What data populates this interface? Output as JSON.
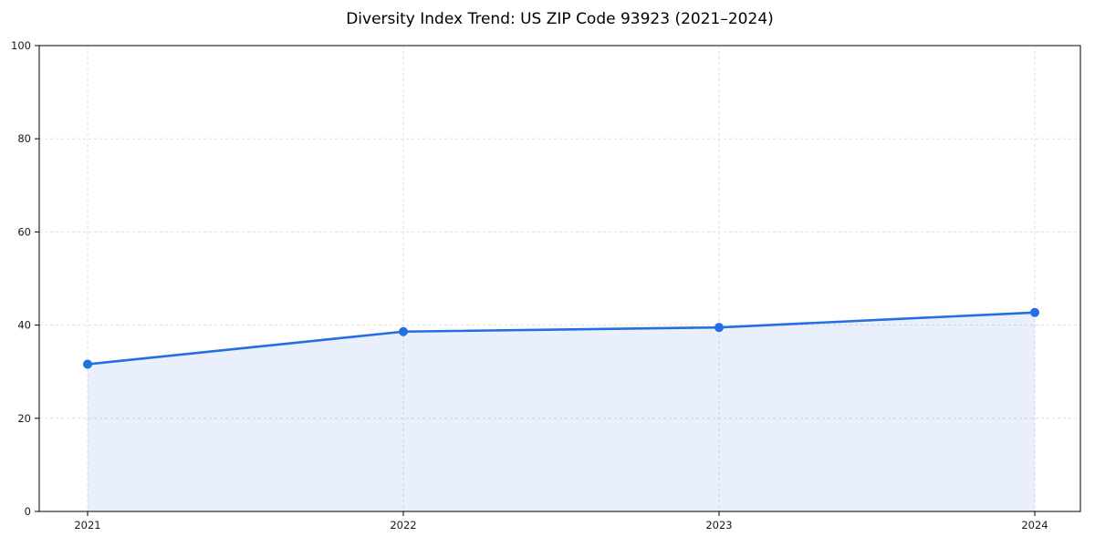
{
  "chart_data": {
    "type": "line",
    "title": "Diversity Index Trend: US ZIP Code 93923 (2021–2024)",
    "x": [
      2021,
      2022,
      2023,
      2024
    ],
    "x_tick_labels": [
      "2021",
      "2022",
      "2023",
      "2024"
    ],
    "series": [
      {
        "name": "Diversity Index",
        "values": [
          31.6,
          38.6,
          39.5,
          42.7
        ]
      }
    ],
    "xlabel": "",
    "ylabel": "",
    "ylim": [
      0,
      100
    ],
    "yticks": [
      0,
      20,
      40,
      60,
      80,
      100
    ],
    "grid": true,
    "grid_style": "dashed",
    "legend_position": "none",
    "colors": {
      "line": "#236ee1",
      "fill": "rgba(35,110,225,0.10)",
      "grid": "#dedede",
      "spine": "#000000",
      "tick_text": "#1a1a1a"
    },
    "marker": "circle"
  }
}
